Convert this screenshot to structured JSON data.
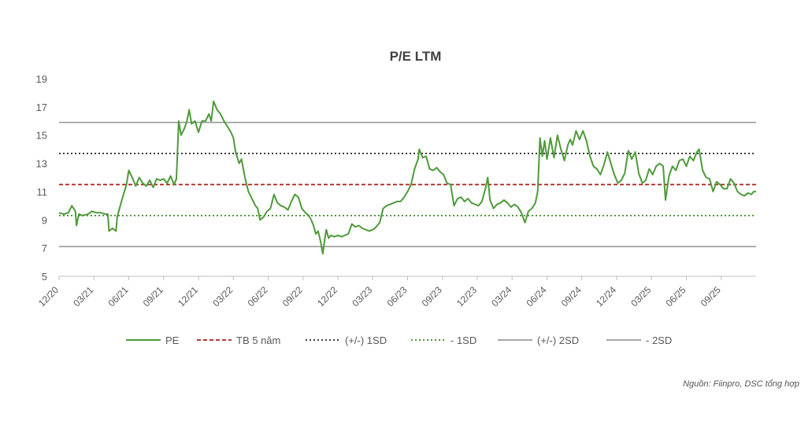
{
  "chart_data": {
    "type": "line",
    "title": "P/E LTM",
    "source": "Nguồn: Fiinpro, DSC tổng hợp",
    "ylim": [
      5,
      19
    ],
    "yticks": [
      5,
      7,
      9,
      11,
      13,
      15,
      17,
      19
    ],
    "xlim": [
      0,
      60
    ],
    "x_tick_labels": [
      "12/20",
      "03/21",
      "06/21",
      "09/21",
      "12/21",
      "03/22",
      "06/22",
      "09/22",
      "12/22",
      "03/23",
      "06/23",
      "09/23",
      "12/23",
      "03/24",
      "06/24",
      "09/24",
      "12/24",
      "03/25",
      "06/25",
      "09/25"
    ],
    "x_tick_positions": [
      0,
      3,
      6,
      9,
      12,
      15,
      18,
      21,
      24,
      27,
      30,
      33,
      36,
      39,
      42,
      45,
      48,
      51,
      54,
      57
    ],
    "series": [
      {
        "name": "PE",
        "color": "#4e9a3a",
        "points": [
          [
            0,
            9.5
          ],
          [
            0.4,
            9.4
          ],
          [
            0.8,
            9.5
          ],
          [
            1.1,
            10.0
          ],
          [
            1.4,
            9.6
          ],
          [
            1.5,
            8.6
          ],
          [
            1.7,
            9.4
          ],
          [
            2.0,
            9.3
          ],
          [
            2.5,
            9.4
          ],
          [
            2.8,
            9.6
          ],
          [
            3.2,
            9.5
          ],
          [
            3.6,
            9.5
          ],
          [
            4.0,
            9.4
          ],
          [
            4.2,
            9.4
          ],
          [
            4.3,
            8.2
          ],
          [
            4.6,
            8.4
          ],
          [
            4.9,
            8.2
          ],
          [
            5.0,
            9.2
          ],
          [
            5.4,
            10.4
          ],
          [
            5.8,
            11.5
          ],
          [
            6.0,
            12.5
          ],
          [
            6.3,
            12.0
          ],
          [
            6.6,
            11.4
          ],
          [
            6.9,
            12.0
          ],
          [
            7.2,
            11.6
          ],
          [
            7.5,
            11.4
          ],
          [
            7.8,
            11.8
          ],
          [
            8.1,
            11.3
          ],
          [
            8.4,
            11.9
          ],
          [
            8.7,
            11.8
          ],
          [
            9.0,
            11.9
          ],
          [
            9.3,
            11.6
          ],
          [
            9.6,
            12.1
          ],
          [
            9.9,
            11.5
          ],
          [
            10.1,
            11.9
          ],
          [
            10.3,
            16.0
          ],
          [
            10.5,
            15.0
          ],
          [
            10.8,
            15.5
          ],
          [
            11.0,
            16.0
          ],
          [
            11.2,
            16.8
          ],
          [
            11.4,
            15.8
          ],
          [
            11.7,
            16.0
          ],
          [
            12.0,
            15.2
          ],
          [
            12.3,
            16.0
          ],
          [
            12.6,
            16.0
          ],
          [
            12.9,
            16.5
          ],
          [
            13.1,
            16.0
          ],
          [
            13.3,
            17.4
          ],
          [
            13.6,
            16.8
          ],
          [
            13.9,
            16.5
          ],
          [
            14.2,
            16.0
          ],
          [
            14.5,
            15.6
          ],
          [
            14.8,
            15.2
          ],
          [
            15.0,
            14.8
          ],
          [
            15.2,
            13.8
          ],
          [
            15.5,
            13.0
          ],
          [
            15.7,
            13.3
          ],
          [
            16.0,
            12.0
          ],
          [
            16.3,
            11.0
          ],
          [
            16.6,
            10.5
          ],
          [
            16.9,
            10.0
          ],
          [
            17.1,
            9.8
          ],
          [
            17.3,
            9.0
          ],
          [
            17.6,
            9.2
          ],
          [
            17.9,
            9.6
          ],
          [
            18.2,
            9.8
          ],
          [
            18.5,
            10.8
          ],
          [
            18.8,
            10.2
          ],
          [
            19.1,
            10.0
          ],
          [
            19.4,
            9.9
          ],
          [
            19.7,
            9.7
          ],
          [
            20.0,
            10.3
          ],
          [
            20.3,
            10.8
          ],
          [
            20.6,
            10.6
          ],
          [
            20.9,
            9.8
          ],
          [
            21.2,
            9.5
          ],
          [
            21.5,
            9.3
          ],
          [
            21.7,
            9.0
          ],
          [
            21.9,
            8.6
          ],
          [
            22.1,
            8.0
          ],
          [
            22.3,
            8.2
          ],
          [
            22.5,
            7.5
          ],
          [
            22.7,
            6.6
          ],
          [
            22.9,
            7.8
          ],
          [
            23.0,
            8.3
          ],
          [
            23.2,
            7.7
          ],
          [
            23.4,
            7.9
          ],
          [
            23.7,
            7.8
          ],
          [
            24.0,
            7.9
          ],
          [
            24.3,
            7.8
          ],
          [
            24.6,
            7.9
          ],
          [
            24.9,
            8.0
          ],
          [
            25.2,
            8.7
          ],
          [
            25.5,
            8.5
          ],
          [
            25.8,
            8.6
          ],
          [
            26.1,
            8.4
          ],
          [
            26.4,
            8.3
          ],
          [
            26.7,
            8.2
          ],
          [
            27.0,
            8.3
          ],
          [
            27.3,
            8.5
          ],
          [
            27.6,
            8.8
          ],
          [
            27.9,
            9.8
          ],
          [
            28.2,
            10.0
          ],
          [
            28.5,
            10.1
          ],
          [
            28.8,
            10.2
          ],
          [
            29.1,
            10.3
          ],
          [
            29.4,
            10.3
          ],
          [
            29.7,
            10.6
          ],
          [
            30.0,
            11.0
          ],
          [
            30.3,
            11.5
          ],
          [
            30.6,
            12.6
          ],
          [
            30.9,
            13.3
          ],
          [
            31.0,
            14.0
          ],
          [
            31.3,
            13.4
          ],
          [
            31.6,
            13.5
          ],
          [
            31.9,
            12.6
          ],
          [
            32.2,
            12.5
          ],
          [
            32.5,
            12.7
          ],
          [
            32.8,
            12.4
          ],
          [
            33.1,
            12.2
          ],
          [
            33.4,
            11.6
          ],
          [
            33.7,
            11.5
          ],
          [
            34.0,
            10.0
          ],
          [
            34.3,
            10.5
          ],
          [
            34.6,
            10.6
          ],
          [
            34.9,
            10.3
          ],
          [
            35.2,
            10.5
          ],
          [
            35.5,
            10.2
          ],
          [
            35.8,
            10.1
          ],
          [
            36.1,
            10.0
          ],
          [
            36.4,
            10.3
          ],
          [
            36.7,
            11.2
          ],
          [
            36.9,
            12.0
          ],
          [
            37.1,
            10.4
          ],
          [
            37.4,
            9.8
          ],
          [
            37.7,
            10.1
          ],
          [
            38.0,
            10.2
          ],
          [
            38.3,
            10.4
          ],
          [
            38.6,
            10.2
          ],
          [
            38.9,
            9.9
          ],
          [
            39.2,
            10.1
          ],
          [
            39.5,
            9.9
          ],
          [
            39.8,
            9.5
          ],
          [
            40.1,
            8.8
          ],
          [
            40.4,
            9.6
          ],
          [
            40.7,
            9.8
          ],
          [
            41.0,
            10.2
          ],
          [
            41.2,
            11.0
          ],
          [
            41.4,
            14.8
          ],
          [
            41.6,
            13.5
          ],
          [
            41.8,
            14.6
          ],
          [
            42.0,
            13.3
          ],
          [
            42.3,
            14.8
          ],
          [
            42.6,
            13.4
          ],
          [
            42.9,
            15.0
          ],
          [
            43.2,
            14.0
          ],
          [
            43.5,
            13.2
          ],
          [
            43.8,
            14.3
          ],
          [
            44.0,
            14.7
          ],
          [
            44.2,
            14.3
          ],
          [
            44.5,
            15.3
          ],
          [
            44.8,
            14.7
          ],
          [
            45.1,
            15.3
          ],
          [
            45.4,
            14.6
          ],
          [
            45.7,
            13.5
          ],
          [
            46.0,
            12.8
          ],
          [
            46.3,
            12.6
          ],
          [
            46.6,
            12.2
          ],
          [
            46.9,
            12.9
          ],
          [
            47.2,
            13.8
          ],
          [
            47.5,
            13.0
          ],
          [
            47.8,
            12.2
          ],
          [
            48.1,
            11.6
          ],
          [
            48.4,
            11.8
          ],
          [
            48.7,
            12.3
          ],
          [
            49.0,
            13.9
          ],
          [
            49.3,
            13.3
          ],
          [
            49.6,
            13.8
          ],
          [
            49.9,
            12.3
          ],
          [
            50.2,
            11.6
          ],
          [
            50.5,
            11.8
          ],
          [
            50.8,
            12.6
          ],
          [
            51.1,
            12.2
          ],
          [
            51.4,
            12.8
          ],
          [
            51.7,
            13.0
          ],
          [
            52.0,
            12.8
          ],
          [
            52.2,
            10.4
          ],
          [
            52.5,
            12.1
          ],
          [
            52.8,
            12.8
          ],
          [
            53.1,
            12.5
          ],
          [
            53.4,
            13.2
          ],
          [
            53.7,
            13.3
          ],
          [
            54.0,
            12.8
          ],
          [
            54.3,
            13.5
          ],
          [
            54.6,
            13.2
          ],
          [
            54.9,
            13.8
          ],
          [
            55.1,
            14.0
          ],
          [
            55.4,
            12.5
          ],
          [
            55.7,
            12.0
          ],
          [
            56.0,
            11.9
          ],
          [
            56.3,
            11.0
          ],
          [
            56.6,
            11.7
          ],
          [
            56.9,
            11.5
          ],
          [
            57.2,
            11.2
          ],
          [
            57.5,
            11.2
          ],
          [
            57.8,
            11.9
          ],
          [
            58.1,
            11.6
          ],
          [
            58.4,
            11.0
          ],
          [
            58.7,
            10.8
          ],
          [
            59.0,
            10.7
          ],
          [
            59.3,
            10.9
          ],
          [
            59.6,
            10.8
          ],
          [
            59.8,
            11.0
          ],
          [
            60.0,
            11.0
          ]
        ]
      },
      {
        "name": "TB 5 năm",
        "color": "#a8201a",
        "style": "dashed",
        "value": 11.5
      },
      {
        "name": "(+/-) 1SD",
        "color": "#222222",
        "style": "dotted",
        "value": 13.7
      },
      {
        "name": "- 1SD",
        "color": "#3d8a2a",
        "style": "dotted",
        "value": 9.3
      },
      {
        "name": "(+/-) 2SD",
        "color": "#999999",
        "style": "solid",
        "value": 15.9
      },
      {
        "name": "- 2SD",
        "color": "#999999",
        "style": "solid",
        "value": 7.1
      }
    ],
    "legend_position": "bottom"
  }
}
